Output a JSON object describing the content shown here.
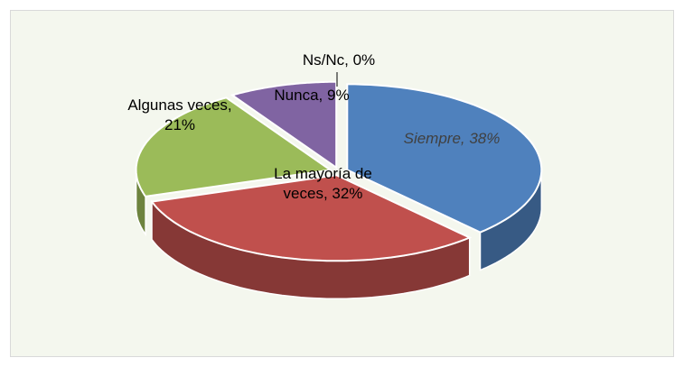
{
  "chart_data": {
    "type": "pie",
    "values": [
      38,
      32,
      21,
      9,
      0
    ],
    "value_labels": [
      "Siempre, 38%",
      "La mayoría de veces, 32%",
      "Algunas veces, 21%",
      "Nunca, 9%",
      "Ns/Nc, 0%"
    ],
    "colors": [
      "#4f81bd",
      "#c0504d",
      "#9bbb59",
      "#8064a2",
      "#4bacc6"
    ]
  }
}
